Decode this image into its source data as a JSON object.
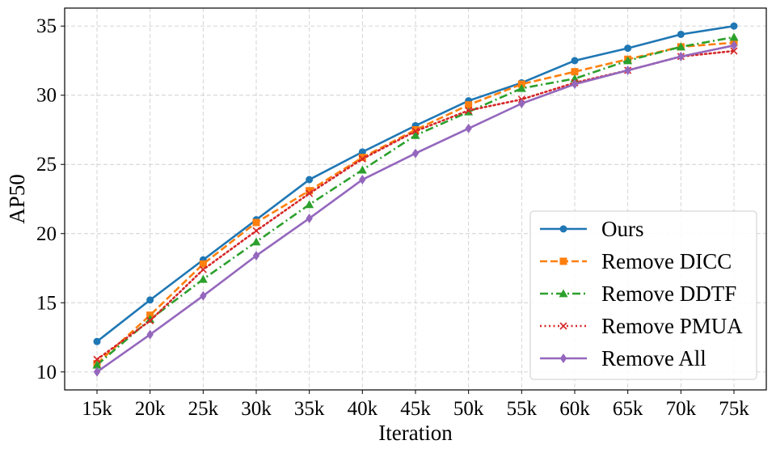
{
  "chart_data": {
    "type": "line",
    "title": "",
    "xlabel": "Iteration",
    "ylabel": "AP50",
    "categories": [
      "15k",
      "20k",
      "25k",
      "30k",
      "35k",
      "40k",
      "45k",
      "50k",
      "55k",
      "60k",
      "65k",
      "70k",
      "75k"
    ],
    "ylim": [
      8.7,
      36.3
    ],
    "yticks": [
      10,
      15,
      20,
      25,
      30,
      35
    ],
    "grid": true,
    "legend_position": "lower right",
    "series": [
      {
        "name": "Ours",
        "color": "#1f77b4",
        "dash": "solid",
        "marker": "circle",
        "values": [
          12.2,
          15.2,
          18.1,
          21.0,
          23.9,
          25.9,
          27.8,
          29.6,
          30.9,
          32.5,
          33.4,
          34.4,
          35.0
        ]
      },
      {
        "name": "Remove DICC",
        "color": "#ff7f0e",
        "dash": "dashed",
        "marker": "square",
        "values": [
          10.6,
          14.1,
          17.8,
          20.8,
          23.1,
          25.5,
          27.5,
          29.3,
          30.8,
          31.7,
          32.6,
          33.5,
          33.8
        ]
      },
      {
        "name": "Remove DDTF",
        "color": "#2ca02c",
        "dash": "dashdot",
        "marker": "triangle",
        "values": [
          10.5,
          13.8,
          16.7,
          19.4,
          22.1,
          24.6,
          27.1,
          28.8,
          30.5,
          31.2,
          32.5,
          33.5,
          34.2
        ]
      },
      {
        "name": "Remove PMUA",
        "color": "#d62728",
        "dash": "dotted",
        "marker": "x",
        "values": [
          10.9,
          13.7,
          17.4,
          20.2,
          22.9,
          25.4,
          27.4,
          28.9,
          29.7,
          30.9,
          31.8,
          32.8,
          33.2
        ]
      },
      {
        "name": "Remove All",
        "color": "#9467bd",
        "dash": "solid",
        "marker": "diamond",
        "values": [
          10.0,
          12.7,
          15.5,
          18.4,
          21.1,
          23.9,
          25.8,
          27.6,
          29.4,
          30.8,
          31.8,
          32.8,
          33.6
        ]
      }
    ]
  }
}
